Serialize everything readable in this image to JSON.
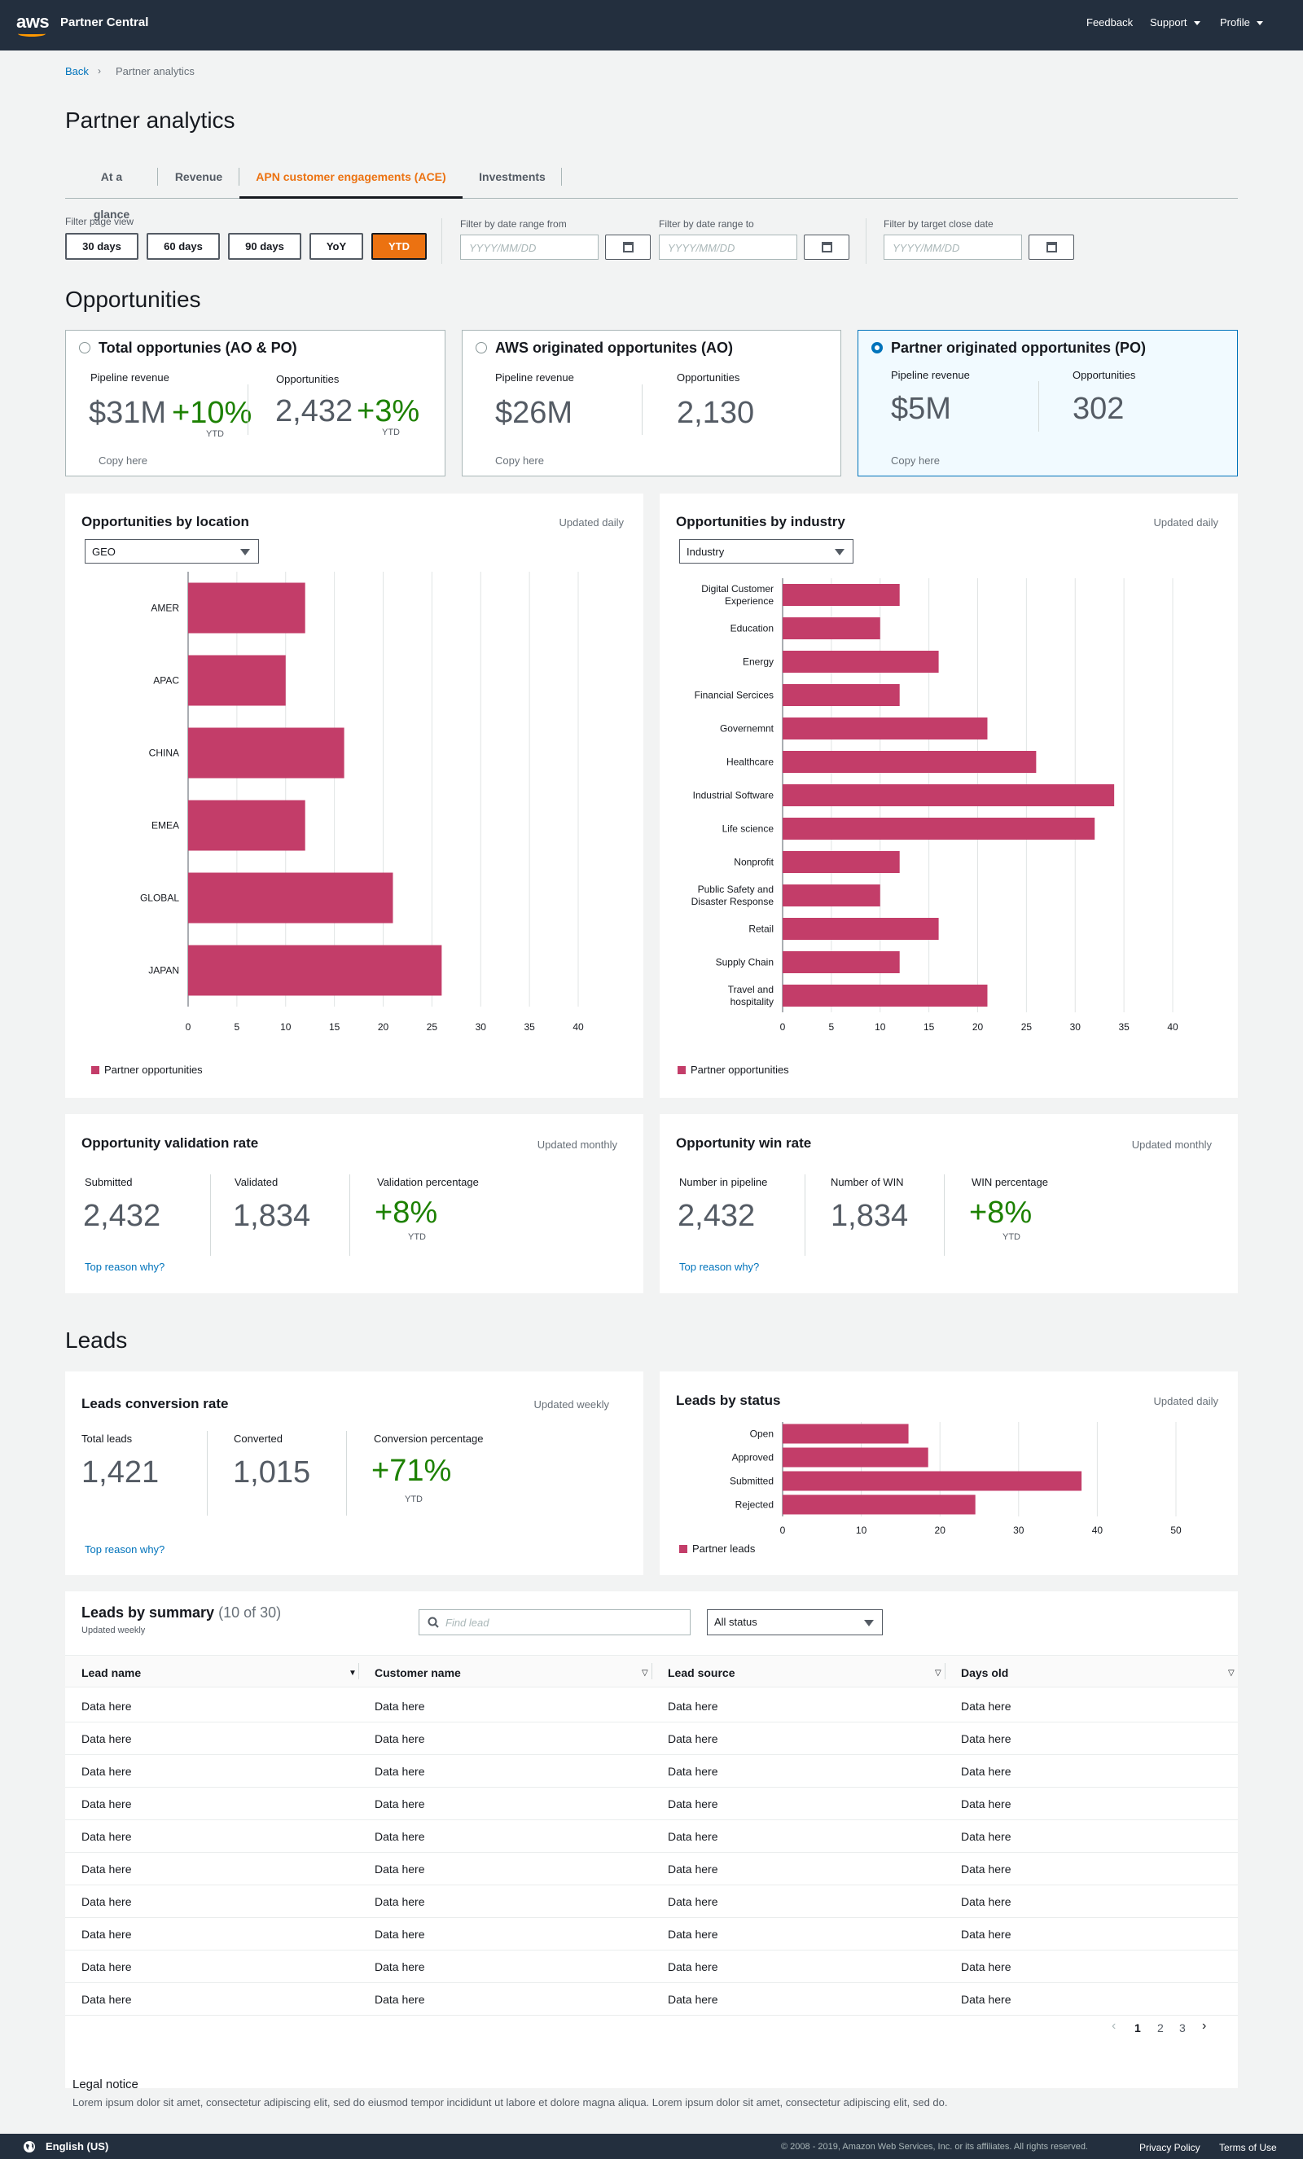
{
  "header": {
    "logo": "aws",
    "brand": "Partner Central",
    "feedback": "Feedback",
    "support": "Support",
    "profile": "Profile"
  },
  "breadcrumb": {
    "back": "Back",
    "current": "Partner analytics"
  },
  "page_title": "Partner analytics",
  "tabs": [
    "At a glance",
    "Revenue",
    "APN customer engagements (ACE)",
    "Investments"
  ],
  "filters": {
    "view_label": "Filter page view",
    "buttons": [
      "30 days",
      "60 days",
      "90 days",
      "YoY",
      "YTD"
    ],
    "from_label": "Filter by date range from",
    "to_label": "Filter by date range to",
    "close_label": "Filter by target close date",
    "placeholder": "YYYY/MM/DD"
  },
  "opportunities": {
    "heading": "Opportunities",
    "cards": [
      {
        "title": "Total opportunies (AO & PO)",
        "rev_label": "Pipeline revenue",
        "rev": "$31M",
        "rev_change": "+10%",
        "opp_label": "Opportunities",
        "opp": "2,432",
        "opp_change": "+3%",
        "ytd": "YTD",
        "copy": "Copy here"
      },
      {
        "title": "AWS originated opportunites (AO)",
        "rev_label": "Pipeline revenue",
        "rev": "$26M",
        "opp_label": "Opportunities",
        "opp": "2,130",
        "copy": "Copy here"
      },
      {
        "title": "Partner originated opportunites (PO)",
        "rev_label": "Pipeline revenue",
        "rev": "$5M",
        "opp_label": "Opportunities",
        "opp": "302",
        "copy": "Copy here"
      }
    ]
  },
  "location_panel": {
    "title": "Opportunities by location",
    "updated": "Updated daily",
    "select": "GEO",
    "legend": "Partner opportunities"
  },
  "industry_panel": {
    "title": "Opportunities by industry",
    "updated": "Updated daily",
    "select": "Industry",
    "legend": "Partner opportunities"
  },
  "validation": {
    "title": "Opportunity validation rate",
    "updated": "Updated monthly",
    "l1": "Submitted",
    "v1": "2,432",
    "l2": "Validated",
    "v2": "1,834",
    "l3": "Validation percentage",
    "v3": "+8%",
    "ytd": "YTD",
    "link": "Top reason why?"
  },
  "winrate": {
    "title": "Opportunity win rate",
    "updated": "Updated monthly",
    "l1": "Number in pipeline",
    "v1": "2,432",
    "l2": "Number of WIN",
    "v2": "1,834",
    "l3": "WIN percentage",
    "v3": "+8%",
    "ytd": "YTD",
    "link": "Top reason why?"
  },
  "leads": {
    "heading": "Leads"
  },
  "conversion": {
    "title": "Leads conversion rate",
    "updated": "Updated weekly",
    "l1": "Total leads",
    "v1": "1,421",
    "l2": "Converted",
    "v2": "1,015",
    "l3": "Conversion percentage",
    "v3": "+71%",
    "ytd": "YTD",
    "link": "Top reason why?"
  },
  "status_panel": {
    "title": "Leads by status",
    "updated": "Updated daily",
    "legend": "Partner leads"
  },
  "summary": {
    "title": "Leads by summary",
    "count": "(10 of 30)",
    "updated": "Updated weekly",
    "search_placeholder": "Find lead",
    "status_select": "All status",
    "columns": [
      "Lead name",
      "Customer name",
      "Lead source",
      "Days old"
    ],
    "cell": "Data here",
    "rows": 10,
    "pages": [
      "1",
      "2",
      "3"
    ]
  },
  "legal": {
    "title": "Legal notice",
    "text": "Lorem ipsum dolor sit amet, consectetur adipiscing elit, sed do eiusmod tempor incididunt ut labore et dolore magna aliqua. Lorem ipsum dolor sit amet, consectetur adipiscing elit, sed do."
  },
  "footer": {
    "language": "English (US)",
    "copyright": "© 2008 - 2019, Amazon Web Services, Inc. or its affiliates. All rights reserved.",
    "privacy": "Privacy Policy",
    "terms": "Terms of Use"
  },
  "colors": {
    "bar": "#c33d69",
    "accent": "#ec7211",
    "link": "#0073bb",
    "green": "#1d8102"
  },
  "chart_data": [
    {
      "type": "bar",
      "orientation": "horizontal",
      "title": "Opportunities by location",
      "categories": [
        "AMER",
        "APAC",
        "CHINA",
        "EMEA",
        "GLOBAL",
        "JAPAN"
      ],
      "series": [
        {
          "name": "Partner opportunities",
          "values": [
            12,
            10,
            16,
            12,
            21,
            26
          ]
        }
      ],
      "ticks": [
        "0",
        "5",
        "10",
        "15",
        "20",
        "25",
        "30",
        "35",
        "40"
      ],
      "xlim": [
        0,
        40
      ]
    },
    {
      "type": "bar",
      "orientation": "horizontal",
      "title": "Opportunities by industry",
      "categories": [
        "Digital Customer Experience",
        "Education",
        "Energy",
        "Financial Sercices",
        "Governemnt",
        "Healthcare",
        "Industrial Software",
        "Life science",
        "Nonprofit",
        "Public Safety and Disaster Response",
        "Retail",
        "Supply Chain",
        "Travel and hospitality"
      ],
      "series": [
        {
          "name": "Partner opportunities",
          "values": [
            12,
            10,
            16,
            12,
            21,
            26,
            34,
            32,
            12,
            10,
            16,
            12,
            21
          ]
        }
      ],
      "ticks": [
        "0",
        "5",
        "10",
        "15",
        "20",
        "25",
        "30",
        "35",
        "40"
      ],
      "xlim": [
        0,
        40
      ]
    },
    {
      "type": "bar",
      "orientation": "horizontal",
      "title": "Leads by status",
      "categories": [
        "Open",
        "Approved",
        "Submitted",
        "Rejected"
      ],
      "series": [
        {
          "name": "Partner leads",
          "values": [
            16,
            18.5,
            38,
            24.5
          ]
        }
      ],
      "ticks": [
        "0",
        "10",
        "20",
        "30",
        "40",
        "50"
      ],
      "xlim": [
        0,
        50
      ]
    }
  ]
}
